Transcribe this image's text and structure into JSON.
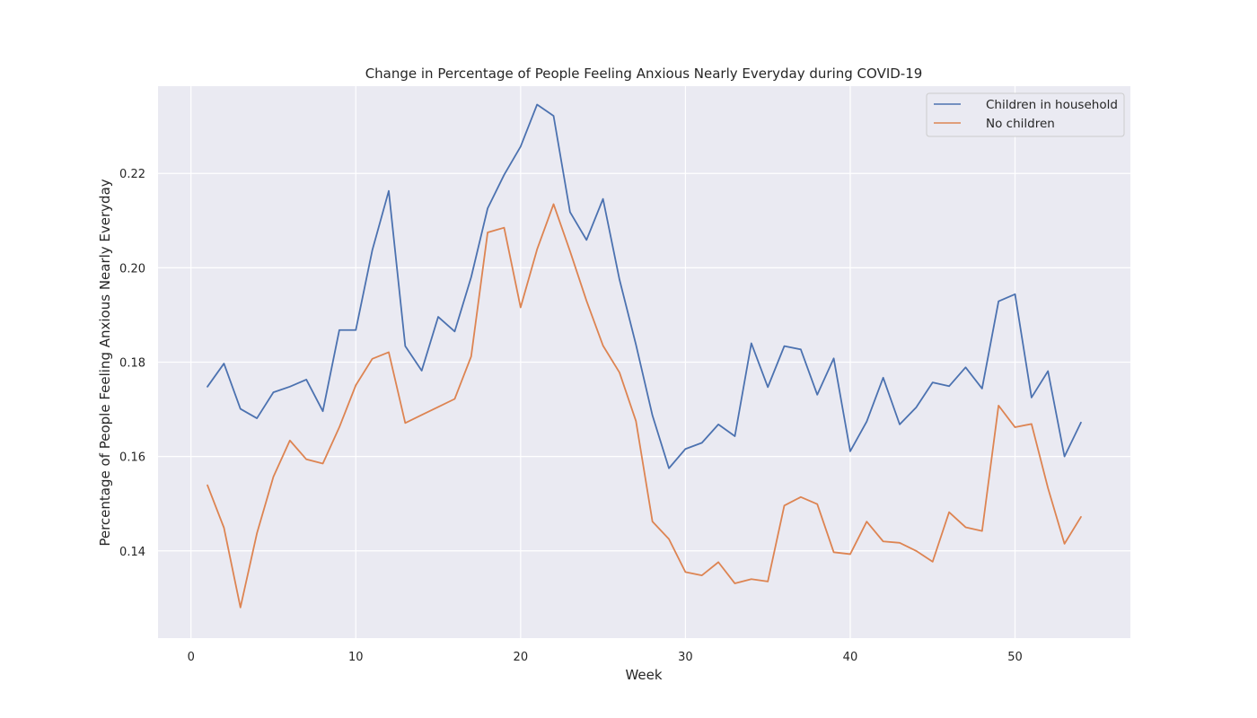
{
  "chart_data": {
    "type": "line",
    "title": "Change in Percentage of People Feeling Anxious Nearly Everyday during COVID-19",
    "xlabel": "Week",
    "ylabel": "Percentage of People Feeling Anxious Nearly Everyday",
    "xlim": [
      -2,
      57
    ],
    "ylim": [
      0.1215,
      0.2385
    ],
    "xticks": [
      0,
      10,
      20,
      30,
      40,
      50
    ],
    "xtick_labels": [
      "0",
      "10",
      "20",
      "30",
      "40",
      "50"
    ],
    "yticks": [
      0.14,
      0.16,
      0.18,
      0.2,
      0.22
    ],
    "ytick_labels": [
      "0.14",
      "0.16",
      "0.18",
      "0.20",
      "0.22"
    ],
    "grid": true,
    "legend_position": "top-right",
    "x": [
      1,
      2,
      3,
      4,
      5,
      6,
      7,
      8,
      9,
      10,
      11,
      12,
      13,
      14,
      15,
      16,
      17,
      18,
      19,
      20,
      21,
      22,
      23,
      24,
      25,
      26,
      27,
      28,
      29,
      30,
      31,
      32,
      33,
      34,
      35,
      36,
      37,
      38,
      39,
      40,
      41,
      42,
      43,
      44,
      45,
      46,
      47,
      48,
      49,
      50,
      51,
      52,
      53,
      54
    ],
    "series": [
      {
        "name": "Children in household",
        "color": "#4c72b0",
        "values": [
          0.1748,
          0.1797,
          0.1701,
          0.1681,
          0.1736,
          0.1748,
          0.1763,
          0.1696,
          0.1868,
          0.1868,
          0.2037,
          0.2163,
          0.1834,
          0.1782,
          0.1896,
          0.1865,
          0.198,
          0.2126,
          0.2197,
          0.2257,
          0.2346,
          0.2322,
          0.2118,
          0.2059,
          0.2146,
          0.1975,
          0.1837,
          0.1687,
          0.1575,
          0.1616,
          0.1629,
          0.1668,
          0.1643,
          0.184,
          0.1747,
          0.1834,
          0.1827,
          0.1731,
          0.1808,
          0.1611,
          0.1674,
          0.1767,
          0.1668,
          0.1704,
          0.1757,
          0.1749,
          0.1789,
          0.1744,
          0.1929,
          0.1944,
          0.1725,
          0.1781,
          0.16,
          0.1672
        ]
      },
      {
        "name": "No children",
        "color": "#dd8452",
        "values": [
          0.1539,
          0.1449,
          0.128,
          0.1437,
          0.1557,
          0.1634,
          0.1594,
          0.1585,
          0.1662,
          0.1751,
          0.1807,
          0.1821,
          0.1671,
          0.1688,
          0.1705,
          0.1722,
          0.1812,
          0.2075,
          0.2085,
          0.1916,
          0.2039,
          0.2135,
          0.2035,
          0.193,
          0.1835,
          0.1778,
          0.1675,
          0.1462,
          0.1425,
          0.1355,
          0.1348,
          0.1376,
          0.1331,
          0.134,
          0.1335,
          0.1496,
          0.1514,
          0.1499,
          0.1397,
          0.1393,
          0.1462,
          0.142,
          0.1417,
          0.14,
          0.1377,
          0.1482,
          0.145,
          0.1442,
          0.1708,
          0.1662,
          0.1669,
          0.1533,
          0.1415,
          0.1472
        ]
      }
    ]
  }
}
